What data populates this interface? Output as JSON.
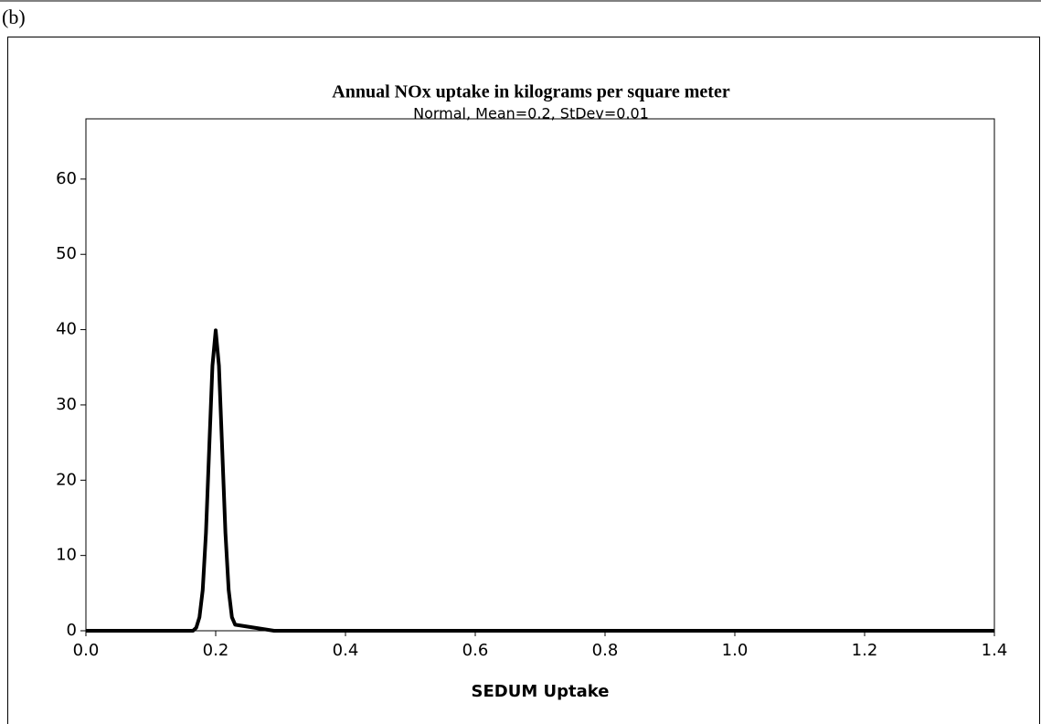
{
  "panel_label": "(b)",
  "chart_data": {
    "type": "line",
    "title": "Annual NOx uptake in kilograms per square meter",
    "subtitle": "Normal, Mean=0.2, StDev=0.01",
    "x_label": "SEDUM Uptake",
    "x": [
      0,
      0.165,
      0.17,
      0.175,
      0.18,
      0.185,
      0.19,
      0.195,
      0.2,
      0.205,
      0.21,
      0.215,
      0.22,
      0.225,
      0.23,
      0.29,
      1.4
    ],
    "series": [
      {
        "name": "SEDUM Uptake",
        "color": "#000000",
        "values": [
          0,
          0,
          0.4,
          1.8,
          5.4,
          13,
          24.2,
          35.2,
          39.9,
          35.2,
          24.2,
          13,
          5.4,
          1.8,
          0.8,
          0,
          0
        ]
      }
    ],
    "xlim": [
      0,
      1.4
    ],
    "xticks": [
      {
        "value": 0,
        "label": "0.0"
      },
      0.2,
      0.4,
      0.6,
      0.8,
      {
        "value": 1,
        "label": "1.0"
      },
      1.2,
      1.4
    ],
    "ylim": [
      0,
      68
    ],
    "yticks": [
      0,
      10,
      20,
      30,
      40,
      50,
      60
    ],
    "grid": false
  }
}
